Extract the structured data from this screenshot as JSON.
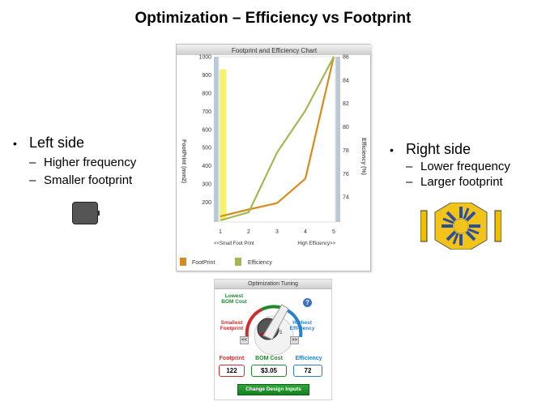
{
  "slide": {
    "title": "Optimization – Efficiency vs Footprint"
  },
  "left_bullets": {
    "heading": "Left side",
    "items": [
      "Higher frequency",
      "Smaller footprint"
    ]
  },
  "right_bullets": {
    "heading": "Right side",
    "items": [
      "Lower frequency",
      "Larger footprint"
    ]
  },
  "chart_data": {
    "type": "line",
    "title": "Footprint and Efficiency Chart",
    "x": [
      1,
      2,
      3,
      4,
      5
    ],
    "x_tick_labels": [
      "1",
      "2",
      "3",
      "4",
      "5"
    ],
    "x_range_labels": {
      "left": "<<Small Foot Print",
      "right": "High Efficiency>>"
    },
    "ylabel_left": "FootPrint (mm2)",
    "ylabel_right": "Efficiency (%)",
    "ylim_left": [
      100,
      1000
    ],
    "yticks_left": [
      "200",
      "300",
      "400",
      "500",
      "600",
      "700",
      "800",
      "900",
      "1000"
    ],
    "ylim_right": [
      72,
      86
    ],
    "yticks_right": [
      "74",
      "76",
      "78",
      "80",
      "82",
      "84",
      "86"
    ],
    "series": [
      {
        "name": "FootPrint",
        "axis": "left",
        "color": "#d98a1c",
        "values": [
          122,
          160,
          195,
          330,
          1000
        ]
      },
      {
        "name": "Efficiency",
        "axis": "right",
        "color": "#9fba55",
        "values": [
          72.0,
          72.7,
          77.8,
          81.4,
          86.5
        ]
      }
    ],
    "highlight": {
      "x": 1,
      "value": 930,
      "color": "#f5f36a"
    },
    "legend_position": "bottom-left",
    "grid": false
  },
  "tuning": {
    "title": "Optimization Tuning",
    "label_bom": "Lowest\nBOM Cost",
    "label_footprint": "Smallest\nFootprint",
    "label_efficiency": "Highest\nEfficiency",
    "dial_scale_max": "5",
    "btn_prev": "<<",
    "btn_next": ">>",
    "help": "?",
    "metrics": {
      "footprint_label": "Footprint",
      "footprint_value": "122",
      "bom_label": "BOM Cost",
      "bom_value": "$3.05",
      "efficiency_label": "Efficiency",
      "efficiency_value": "72"
    },
    "change_button": "Change Design Inputs",
    "colors": {
      "footprint": "#d22b2b",
      "bom": "#1e8a2b",
      "efficiency": "#2a7fd0"
    }
  }
}
